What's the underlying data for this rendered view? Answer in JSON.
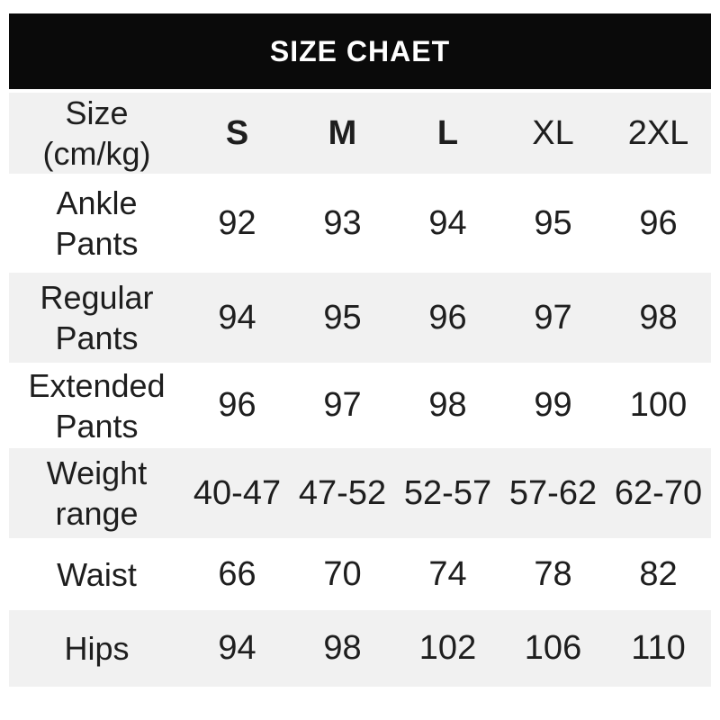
{
  "title": "SIZE CHAET",
  "colors": {
    "banner_bg": "#0a0a0a",
    "banner_text": "#ffffff",
    "row_alt_bg": "#f1f1f1",
    "text": "#1e1e1e"
  },
  "table": {
    "header": {
      "label": "Size\n(cm/kg)",
      "columns": [
        "S",
        "M",
        "L",
        "XL",
        "2XL"
      ]
    },
    "rows": [
      {
        "label": "Ankle\nPants",
        "values": [
          "92",
          "93",
          "94",
          "95",
          "96"
        ]
      },
      {
        "label": "Regular\nPants",
        "values": [
          "94",
          "95",
          "96",
          "97",
          "98"
        ]
      },
      {
        "label": "Extended\nPants",
        "values": [
          "96",
          "97",
          "98",
          "99",
          "100"
        ]
      },
      {
        "label": "Weight\nrange",
        "values": [
          "40-47",
          "47-52",
          "52-57",
          "57-62",
          "62-70"
        ]
      },
      {
        "label": "Waist",
        "values": [
          "66",
          "70",
          "74",
          "78",
          "82"
        ]
      },
      {
        "label": "Hips",
        "values": [
          "94",
          "98",
          "102",
          "106",
          "110"
        ]
      }
    ]
  },
  "chart_data": {
    "type": "table",
    "title": "SIZE CHAET",
    "columns": [
      "Size (cm/kg)",
      "S",
      "M",
      "L",
      "XL",
      "2XL"
    ],
    "rows": [
      [
        "Ankle Pants",
        92,
        93,
        94,
        95,
        96
      ],
      [
        "Regular Pants",
        94,
        95,
        96,
        97,
        98
      ],
      [
        "Extended Pants",
        96,
        97,
        98,
        99,
        100
      ],
      [
        "Weight range",
        "40-47",
        "47-52",
        "52-57",
        "57-62",
        "62-70"
      ],
      [
        "Waist",
        66,
        70,
        74,
        78,
        82
      ],
      [
        "Hips",
        94,
        98,
        102,
        106,
        110
      ]
    ]
  }
}
